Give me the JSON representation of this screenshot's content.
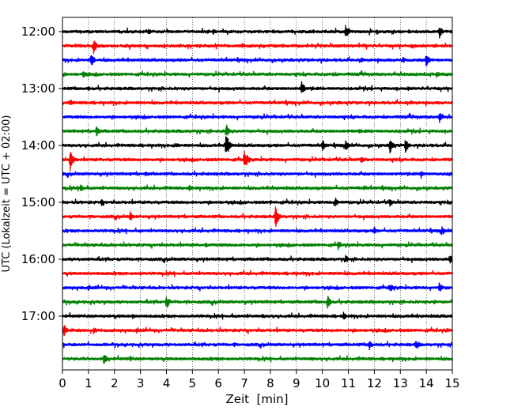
{
  "chart_data": {
    "type": "line",
    "title": "",
    "xlabel": "Zeit  [min]",
    "ylabel": "UTC (Lokalzeit = UTC + 02:00)",
    "xlim": [
      0,
      15
    ],
    "x_ticks": [
      "0",
      "1",
      "2",
      "3",
      "4",
      "5",
      "6",
      "7",
      "8",
      "9",
      "10",
      "11",
      "12",
      "13",
      "14",
      "15"
    ],
    "y_tick_labels": [
      "12:00",
      "13:00",
      "14:00",
      "15:00",
      "16:00",
      "17:00"
    ],
    "grid": "vertical dotted",
    "trace_interval_min": 15,
    "trace_colors": [
      "#000000",
      "#ff0000",
      "#0000ff",
      "#008000"
    ],
    "traces": [
      {
        "start": "12:00",
        "color": "#000000",
        "events": [
          [
            10.9,
            1.2
          ],
          [
            14.5,
            1.3
          ],
          [
            5.8,
            0.6
          ],
          [
            3.3,
            0.7
          ]
        ]
      },
      {
        "start": "12:15",
        "color": "#ff0000",
        "events": [
          [
            1.2,
            1.4
          ],
          [
            4.5,
            0.5
          ],
          [
            13.5,
            0.5
          ]
        ]
      },
      {
        "start": "12:30",
        "color": "#0000ff",
        "events": [
          [
            1.1,
            1.3
          ],
          [
            14.0,
            1.3
          ],
          [
            11.5,
            0.6
          ],
          [
            13.1,
            0.6
          ]
        ]
      },
      {
        "start": "12:45",
        "color": "#008000",
        "events": [
          [
            0.8,
            0.8
          ],
          [
            10.4,
            0.5
          ],
          [
            14.4,
            0.7
          ]
        ]
      },
      {
        "start": "13:00",
        "color": "#000000",
        "events": [
          [
            9.2,
            1.3
          ],
          [
            1.0,
            0.5
          ],
          [
            13.3,
            0.5
          ]
        ]
      },
      {
        "start": "13:15",
        "color": "#ff0000",
        "events": [
          [
            0.3,
            0.8
          ],
          [
            13.4,
            0.5
          ],
          [
            10.6,
            0.4
          ]
        ]
      },
      {
        "start": "13:30",
        "color": "#0000ff",
        "events": [
          [
            14.5,
            1.1
          ],
          [
            7.5,
            0.4
          ]
        ]
      },
      {
        "start": "13:45",
        "color": "#008000",
        "events": [
          [
            6.3,
            1.3
          ],
          [
            1.3,
            1.0
          ],
          [
            11.4,
            0.5
          ]
        ]
      },
      {
        "start": "14:00",
        "color": "#000000",
        "events": [
          [
            6.3,
            2.4
          ],
          [
            10.0,
            1.2
          ],
          [
            10.9,
            1.1
          ],
          [
            12.6,
            1.5
          ],
          [
            13.2,
            1.3
          ],
          [
            4.4,
            0.6
          ]
        ]
      },
      {
        "start": "14:15",
        "color": "#ff0000",
        "events": [
          [
            0.3,
            2.0
          ],
          [
            7.0,
            2.0
          ],
          [
            11.5,
            0.7
          ]
        ]
      },
      {
        "start": "14:30",
        "color": "#0000ff",
        "events": [
          [
            13.8,
            0.8
          ],
          [
            3.2,
            0.5
          ],
          [
            14.9,
            0.5
          ]
        ]
      },
      {
        "start": "14:45",
        "color": "#008000",
        "events": [
          [
            0.7,
            1.0
          ],
          [
            4.9,
            0.8
          ],
          [
            11.6,
            0.5
          ]
        ]
      },
      {
        "start": "15:00",
        "color": "#000000",
        "events": [
          [
            1.5,
            0.8
          ],
          [
            10.5,
            0.9
          ],
          [
            12.6,
            0.8
          ],
          [
            8.0,
            0.5
          ]
        ]
      },
      {
        "start": "15:15",
        "color": "#ff0000",
        "events": [
          [
            2.6,
            1.0
          ],
          [
            8.2,
            2.0
          ],
          [
            15.0,
            0.6
          ]
        ]
      },
      {
        "start": "15:30",
        "color": "#0000ff",
        "events": [
          [
            12.0,
            0.8
          ],
          [
            14.6,
            0.9
          ],
          [
            3.0,
            0.4
          ]
        ]
      },
      {
        "start": "15:45",
        "color": "#008000",
        "events": [
          [
            10.6,
            1.0
          ],
          [
            5.5,
            0.5
          ]
        ]
      },
      {
        "start": "16:00",
        "color": "#000000",
        "events": [
          [
            10.9,
            0.8
          ],
          [
            14.9,
            1.1
          ],
          [
            8.5,
            0.5
          ]
        ]
      },
      {
        "start": "16:15",
        "color": "#ff0000",
        "events": [
          [
            10.6,
            0.5
          ],
          [
            3.0,
            0.4
          ]
        ]
      },
      {
        "start": "16:30",
        "color": "#0000ff",
        "events": [
          [
            12.6,
            0.9
          ],
          [
            14.5,
            1.0
          ],
          [
            1.3,
            0.4
          ]
        ]
      },
      {
        "start": "16:45",
        "color": "#008000",
        "events": [
          [
            4.0,
            1.3
          ],
          [
            10.2,
            1.3
          ],
          [
            14.3,
            0.5
          ]
        ]
      },
      {
        "start": "17:00",
        "color": "#000000",
        "events": [
          [
            10.8,
            0.9
          ],
          [
            2.7,
            0.5
          ],
          [
            7.7,
            0.4
          ]
        ]
      },
      {
        "start": "17:15",
        "color": "#ff0000",
        "events": [
          [
            0.05,
            1.3
          ],
          [
            1.2,
            0.8
          ],
          [
            14.8,
            0.5
          ]
        ]
      },
      {
        "start": "17:30",
        "color": "#0000ff",
        "events": [
          [
            11.8,
            1.1
          ],
          [
            13.6,
            1.1
          ],
          [
            6.6,
            0.5
          ]
        ]
      },
      {
        "start": "17:45",
        "color": "#008000",
        "events": [
          [
            1.6,
            1.4
          ],
          [
            2.6,
            0.6
          ],
          [
            9.6,
            0.4
          ]
        ]
      }
    ]
  }
}
